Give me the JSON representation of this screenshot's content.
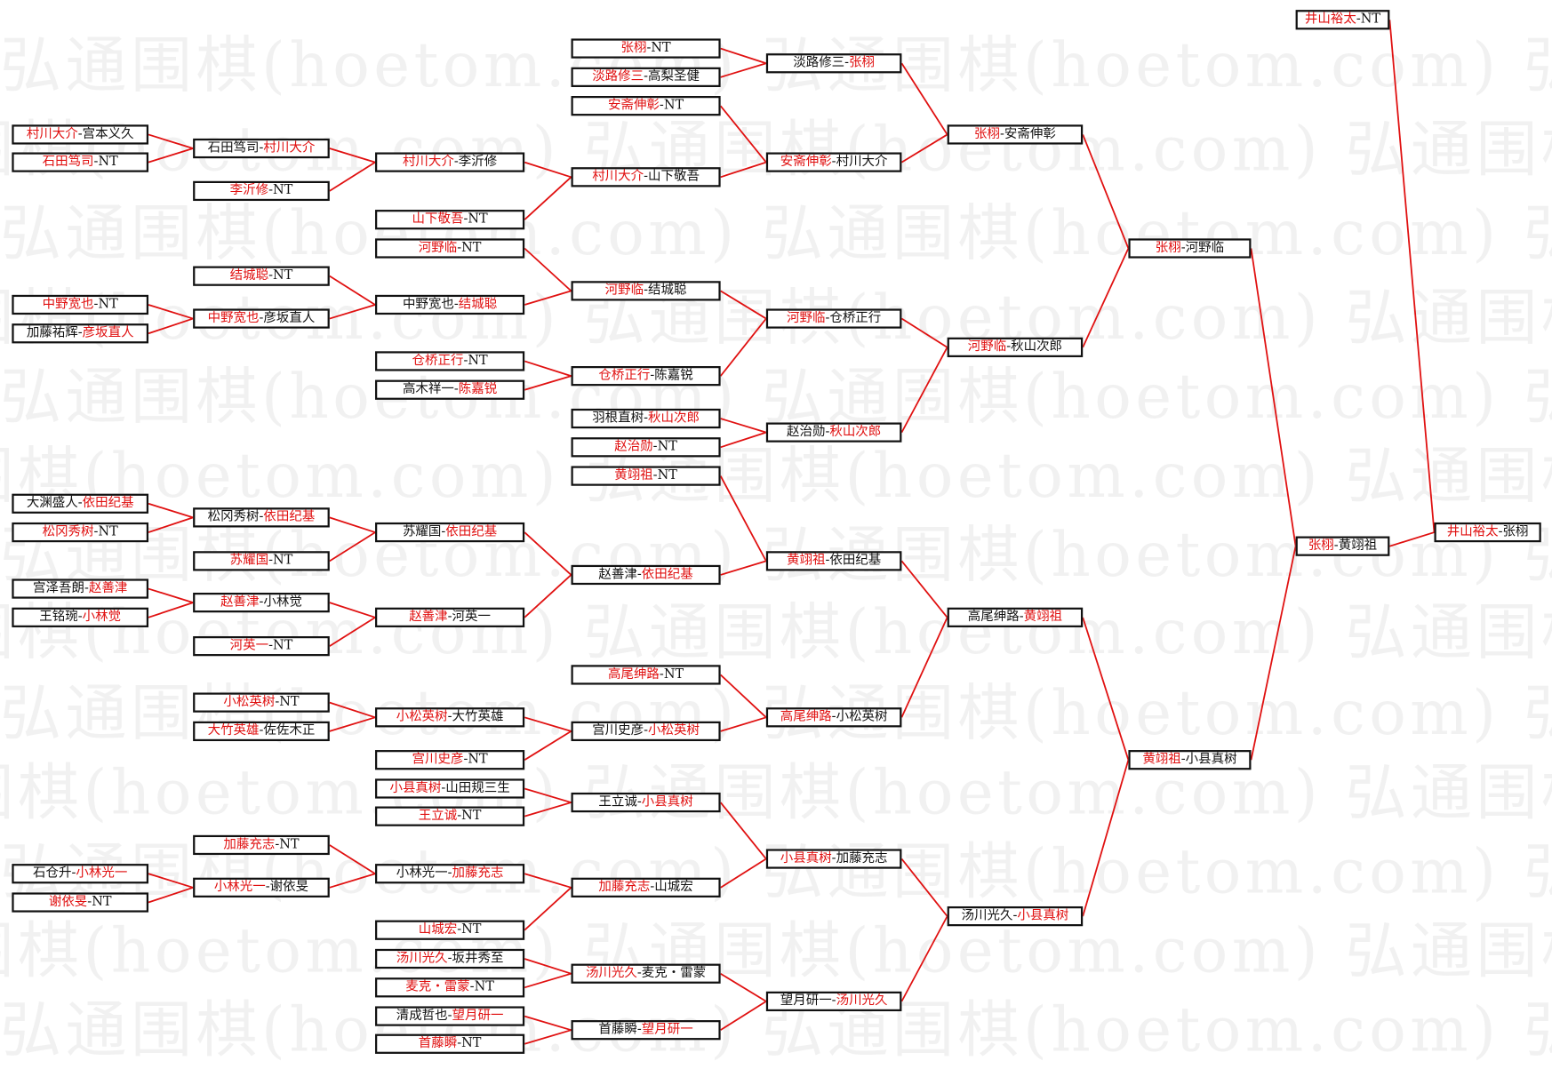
{
  "watermark": "弘通围棋(hoetom.com)",
  "colors": {
    "winner": "#e01010",
    "loser": "#111111",
    "connector": "#e01010",
    "border": "#111111"
  },
  "bracket": [
    [
      {
        "id": "A1",
        "p": [
          "村川大介",
          "宫本义久"
        ],
        "w": 0
      },
      {
        "id": "A2",
        "p": [
          "石田笃司",
          "NT"
        ],
        "w": 0
      },
      {
        "id": "A3",
        "p": [
          "中野宽也",
          "NT"
        ],
        "w": 0
      },
      {
        "id": "A4",
        "p": [
          "加藤祐辉",
          "彦坂直人"
        ],
        "w": 1
      },
      {
        "id": "A5",
        "p": [
          "大渊盛人",
          "依田纪基"
        ],
        "w": 1
      },
      {
        "id": "A6",
        "p": [
          "松冈秀树",
          "NT"
        ],
        "w": 0
      },
      {
        "id": "A7",
        "p": [
          "宫泽吾朗",
          "赵善津"
        ],
        "w": 1
      },
      {
        "id": "A8",
        "p": [
          "王铭琬",
          "小林觉"
        ],
        "w": 1
      },
      {
        "id": "A9",
        "p": [
          "石仓升",
          "小林光一"
        ],
        "w": 1
      },
      {
        "id": "A10",
        "p": [
          "谢依旻",
          "NT"
        ],
        "w": 0
      }
    ],
    [
      {
        "id": "B1",
        "p": [
          "石田笃司",
          "村川大介"
        ],
        "w": 1,
        "from": [
          "A1",
          "A2"
        ]
      },
      {
        "id": "B2",
        "p": [
          "李沂修",
          "NT"
        ],
        "w": 0
      },
      {
        "id": "B3",
        "p": [
          "结城聪",
          "NT"
        ],
        "w": 0
      },
      {
        "id": "B4",
        "p": [
          "中野宽也",
          "彦坂直人"
        ],
        "w": 0,
        "from": [
          "A3",
          "A4"
        ]
      },
      {
        "id": "B5",
        "p": [
          "松冈秀树",
          "依田纪基"
        ],
        "w": 1,
        "from": [
          "A5",
          "A6"
        ]
      },
      {
        "id": "B6",
        "p": [
          "苏耀国",
          "NT"
        ],
        "w": 0
      },
      {
        "id": "B7",
        "p": [
          "赵善津",
          "小林觉"
        ],
        "w": 0,
        "from": [
          "A7",
          "A8"
        ]
      },
      {
        "id": "B8",
        "p": [
          "河英一",
          "NT"
        ],
        "w": 0
      },
      {
        "id": "B9",
        "p": [
          "小松英树",
          "NT"
        ],
        "w": 0
      },
      {
        "id": "B10",
        "p": [
          "大竹英雄",
          "佐佐木正"
        ],
        "w": 0
      },
      {
        "id": "B11",
        "p": [
          "加藤充志",
          "NT"
        ],
        "w": 0
      },
      {
        "id": "B12",
        "p": [
          "小林光一",
          "谢依旻"
        ],
        "w": 0,
        "from": [
          "A9",
          "A10"
        ]
      }
    ],
    [
      {
        "id": "C1",
        "p": [
          "村川大介",
          "李沂修"
        ],
        "w": 0,
        "from": [
          "B1",
          "B2"
        ]
      },
      {
        "id": "C2",
        "p": [
          "山下敬吾",
          "NT"
        ],
        "w": 0
      },
      {
        "id": "C3",
        "p": [
          "河野临",
          "NT"
        ],
        "w": 0
      },
      {
        "id": "C4",
        "p": [
          "中野宽也",
          "结城聪"
        ],
        "w": 1,
        "from": [
          "B3",
          "B4"
        ]
      },
      {
        "id": "C5",
        "p": [
          "仓桥正行",
          "NT"
        ],
        "w": 0
      },
      {
        "id": "C6",
        "p": [
          "高木祥一",
          "陈嘉锐"
        ],
        "w": 1
      },
      {
        "id": "C7",
        "p": [
          "苏耀国",
          "依田纪基"
        ],
        "w": 1,
        "from": [
          "B5",
          "B6"
        ]
      },
      {
        "id": "C8",
        "p": [
          "赵善津",
          "河英一"
        ],
        "w": 0,
        "from": [
          "B7",
          "B8"
        ]
      },
      {
        "id": "C9",
        "p": [
          "小松英树",
          "大竹英雄"
        ],
        "w": 0,
        "from": [
          "B9",
          "B10"
        ]
      },
      {
        "id": "C10",
        "p": [
          "宫川史彦",
          "NT"
        ],
        "w": 0
      },
      {
        "id": "C11",
        "p": [
          "小县真树",
          "山田规三生"
        ],
        "w": 0
      },
      {
        "id": "C12",
        "p": [
          "王立诚",
          "NT"
        ],
        "w": 0
      },
      {
        "id": "C13",
        "p": [
          "小林光一",
          "加藤充志"
        ],
        "w": 1,
        "from": [
          "B11",
          "B12"
        ]
      },
      {
        "id": "C14",
        "p": [
          "山城宏",
          "NT"
        ],
        "w": 0
      },
      {
        "id": "C15",
        "p": [
          "汤川光久",
          "坂井秀至"
        ],
        "w": 0
      },
      {
        "id": "C16",
        "p": [
          "麦克・雷蒙",
          "NT"
        ],
        "w": 0
      },
      {
        "id": "C17",
        "p": [
          "清成哲也",
          "望月研一"
        ],
        "w": 1
      },
      {
        "id": "C18",
        "p": [
          "首藤瞬",
          "NT"
        ],
        "w": 0
      }
    ],
    [
      {
        "id": "D1",
        "p": [
          "张栩",
          "NT"
        ],
        "w": 0
      },
      {
        "id": "D2",
        "p": [
          "淡路修三",
          "高梨圣健"
        ],
        "w": 0
      },
      {
        "id": "D3",
        "p": [
          "安斋伸彰",
          "NT"
        ],
        "w": 0
      },
      {
        "id": "D4",
        "p": [
          "村川大介",
          "山下敬吾"
        ],
        "w": 0,
        "from": [
          "C1",
          "C2"
        ]
      },
      {
        "id": "D5",
        "p": [
          "河野临",
          "结城聪"
        ],
        "w": 0,
        "from": [
          "C3",
          "C4"
        ]
      },
      {
        "id": "D6",
        "p": [
          "仓桥正行",
          "陈嘉锐"
        ],
        "w": 0,
        "from": [
          "C5",
          "C6"
        ]
      },
      {
        "id": "D7",
        "p": [
          "羽根直树",
          "秋山次郎"
        ],
        "w": 1
      },
      {
        "id": "D8",
        "p": [
          "赵治勋",
          "NT"
        ],
        "w": 0
      },
      {
        "id": "D9",
        "p": [
          "黄翊祖",
          "NT"
        ],
        "w": 0
      },
      {
        "id": "D10",
        "p": [
          "赵善津",
          "依田纪基"
        ],
        "w": 1,
        "from": [
          "C7",
          "C8"
        ]
      },
      {
        "id": "D11",
        "p": [
          "高尾绅路",
          "NT"
        ],
        "w": 0
      },
      {
        "id": "D12",
        "p": [
          "宫川史彦",
          "小松英树"
        ],
        "w": 1,
        "from": [
          "C9",
          "C10"
        ]
      },
      {
        "id": "D13",
        "p": [
          "王立诚",
          "小县真树"
        ],
        "w": 1,
        "from": [
          "C11",
          "C12"
        ]
      },
      {
        "id": "D14",
        "p": [
          "加藤充志",
          "山城宏"
        ],
        "w": 0,
        "from": [
          "C13",
          "C14"
        ]
      },
      {
        "id": "D15",
        "p": [
          "汤川光久",
          "麦克・雷蒙"
        ],
        "w": 0,
        "from": [
          "C15",
          "C16"
        ]
      },
      {
        "id": "D16",
        "p": [
          "首藤瞬",
          "望月研一"
        ],
        "w": 1,
        "from": [
          "C17",
          "C18"
        ]
      }
    ],
    [
      {
        "id": "E1",
        "p": [
          "淡路修三",
          "张栩"
        ],
        "w": 1,
        "from": [
          "D1",
          "D2"
        ]
      },
      {
        "id": "E2",
        "p": [
          "安斋伸彰",
          "村川大介"
        ],
        "w": 0,
        "from": [
          "D3",
          "D4"
        ]
      },
      {
        "id": "E3",
        "p": [
          "河野临",
          "仓桥正行"
        ],
        "w": 0,
        "from": [
          "D5",
          "D6"
        ]
      },
      {
        "id": "E4",
        "p": [
          "赵治勋",
          "秋山次郎"
        ],
        "w": 1,
        "from": [
          "D7",
          "D8"
        ]
      },
      {
        "id": "E5",
        "p": [
          "黄翊祖",
          "依田纪基"
        ],
        "w": 0,
        "from": [
          "D9",
          "D10"
        ]
      },
      {
        "id": "E6",
        "p": [
          "高尾绅路",
          "小松英树"
        ],
        "w": 0,
        "from": [
          "D11",
          "D12"
        ]
      },
      {
        "id": "E7",
        "p": [
          "小县真树",
          "加藤充志"
        ],
        "w": 0,
        "from": [
          "D13",
          "D14"
        ]
      },
      {
        "id": "E8",
        "p": [
          "望月研一",
          "汤川光久"
        ],
        "w": 1,
        "from": [
          "D15",
          "D16"
        ]
      }
    ],
    [
      {
        "id": "F1",
        "p": [
          "张栩",
          "安斋伸彰"
        ],
        "w": 0,
        "from": [
          "E1",
          "E2"
        ]
      },
      {
        "id": "F2",
        "p": [
          "河野临",
          "秋山次郎"
        ],
        "w": 0,
        "from": [
          "E3",
          "E4"
        ]
      },
      {
        "id": "F3",
        "p": [
          "高尾绅路",
          "黄翊祖"
        ],
        "w": 1,
        "from": [
          "E5",
          "E6"
        ]
      },
      {
        "id": "F4",
        "p": [
          "汤川光久",
          "小县真树"
        ],
        "w": 1,
        "from": [
          "E7",
          "E8"
        ]
      }
    ],
    [
      {
        "id": "G1",
        "p": [
          "张栩",
          "河野临"
        ],
        "w": 0,
        "from": [
          "F1",
          "F2"
        ]
      },
      {
        "id": "G2",
        "p": [
          "黄翊祖",
          "小县真树"
        ],
        "w": 0,
        "from": [
          "F3",
          "F4"
        ]
      }
    ],
    [
      {
        "id": "H1",
        "p": [
          "井山裕太",
          "NT"
        ],
        "w": 0
      },
      {
        "id": "H2",
        "p": [
          "张栩",
          "黄翊祖"
        ],
        "w": 0,
        "from": [
          "G1",
          "G2"
        ]
      }
    ],
    [
      {
        "id": "I1",
        "p": [
          "井山裕太",
          "张栩"
        ],
        "w": 0,
        "from": [
          "H1",
          "H2"
        ]
      }
    ]
  ]
}
